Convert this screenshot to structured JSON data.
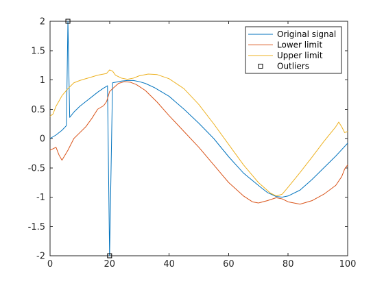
{
  "chart_data": {
    "type": "line",
    "xlim": [
      0,
      100
    ],
    "ylim": [
      -2,
      2
    ],
    "x_ticks": [
      0,
      20,
      40,
      60,
      80,
      100
    ],
    "y_ticks": [
      -2,
      -1.5,
      -1,
      -0.5,
      0,
      0.5,
      1,
      1.5,
      2
    ],
    "x_tick_labels": [
      "0",
      "20",
      "40",
      "60",
      "80",
      "100"
    ],
    "y_tick_labels": [
      "-2",
      "-1.5",
      "-1",
      "-0.5",
      "0",
      "0.5",
      "1",
      "1.5",
      "2"
    ],
    "grid": false,
    "legend_position": "top-right",
    "series": [
      {
        "name": "Original signal",
        "color": "#0072BD",
        "points": [
          [
            0,
            0
          ],
          [
            2,
            0.06
          ],
          [
            4,
            0.14
          ],
          [
            5.5,
            0.22
          ],
          [
            6,
            2.0
          ],
          [
            6.6,
            0.36
          ],
          [
            8,
            0.45
          ],
          [
            10,
            0.55
          ],
          [
            12,
            0.63
          ],
          [
            14,
            0.71
          ],
          [
            16,
            0.79
          ],
          [
            18,
            0.86
          ],
          [
            19.3,
            0.9
          ],
          [
            20,
            -2.0
          ],
          [
            21,
            0.95
          ],
          [
            24,
            0.98
          ],
          [
            26,
            0.99
          ],
          [
            28,
            0.99
          ],
          [
            30,
            0.97
          ],
          [
            32,
            0.94
          ],
          [
            35,
            0.87
          ],
          [
            40,
            0.72
          ],
          [
            45,
            0.5
          ],
          [
            50,
            0.26
          ],
          [
            55,
            0.0
          ],
          [
            60,
            -0.31
          ],
          [
            65,
            -0.59
          ],
          [
            70,
            -0.8
          ],
          [
            73,
            -0.92
          ],
          [
            76,
            -0.99
          ],
          [
            78,
            -1.0
          ],
          [
            80,
            -0.98
          ],
          [
            84,
            -0.88
          ],
          [
            88,
            -0.7
          ],
          [
            92,
            -0.5
          ],
          [
            96,
            -0.3
          ],
          [
            100,
            -0.08
          ]
        ]
      },
      {
        "name": "Lower limit",
        "color": "#D95319",
        "points": [
          [
            0,
            -0.2
          ],
          [
            2,
            -0.15
          ],
          [
            3,
            -0.28
          ],
          [
            4,
            -0.37
          ],
          [
            6,
            -0.2
          ],
          [
            8,
            0.0
          ],
          [
            10,
            0.1
          ],
          [
            12,
            0.2
          ],
          [
            14,
            0.34
          ],
          [
            16,
            0.5
          ],
          [
            18,
            0.56
          ],
          [
            19,
            0.63
          ],
          [
            20,
            0.8
          ],
          [
            21,
            0.85
          ],
          [
            23,
            0.94
          ],
          [
            25,
            0.97
          ],
          [
            27,
            0.96
          ],
          [
            29,
            0.92
          ],
          [
            32,
            0.82
          ],
          [
            36,
            0.62
          ],
          [
            40,
            0.39
          ],
          [
            45,
            0.12
          ],
          [
            50,
            -0.15
          ],
          [
            55,
            -0.45
          ],
          [
            60,
            -0.75
          ],
          [
            65,
            -0.98
          ],
          [
            68,
            -1.08
          ],
          [
            70,
            -1.1
          ],
          [
            73,
            -1.06
          ],
          [
            76,
            -1.01
          ],
          [
            78,
            -1.03
          ],
          [
            80,
            -1.08
          ],
          [
            84,
            -1.12
          ],
          [
            88,
            -1.06
          ],
          [
            92,
            -0.95
          ],
          [
            96,
            -0.8
          ],
          [
            98,
            -0.65
          ],
          [
            99,
            -0.52
          ],
          [
            100,
            -0.45
          ]
        ]
      },
      {
        "name": "Upper limit",
        "color": "#EDB120",
        "points": [
          [
            0,
            0.38
          ],
          [
            1,
            0.42
          ],
          [
            2,
            0.55
          ],
          [
            4,
            0.73
          ],
          [
            6,
            0.85
          ],
          [
            8,
            0.95
          ],
          [
            10,
            0.99
          ],
          [
            12,
            1.02
          ],
          [
            14,
            1.05
          ],
          [
            16,
            1.08
          ],
          [
            18,
            1.1
          ],
          [
            19,
            1.11
          ],
          [
            20,
            1.17
          ],
          [
            21,
            1.15
          ],
          [
            22,
            1.08
          ],
          [
            24,
            1.03
          ],
          [
            26,
            1.01
          ],
          [
            28,
            1.03
          ],
          [
            30,
            1.07
          ],
          [
            33,
            1.1
          ],
          [
            36,
            1.09
          ],
          [
            40,
            1.02
          ],
          [
            45,
            0.85
          ],
          [
            50,
            0.58
          ],
          [
            55,
            0.25
          ],
          [
            60,
            -0.1
          ],
          [
            65,
            -0.45
          ],
          [
            70,
            -0.75
          ],
          [
            74,
            -0.93
          ],
          [
            76,
            -0.98
          ],
          [
            78,
            -0.95
          ],
          [
            80,
            -0.83
          ],
          [
            84,
            -0.58
          ],
          [
            88,
            -0.32
          ],
          [
            92,
            -0.05
          ],
          [
            96,
            0.2
          ],
          [
            97,
            0.28
          ],
          [
            98,
            0.2
          ],
          [
            99,
            0.1
          ],
          [
            100,
            0.12
          ]
        ]
      }
    ],
    "markers": {
      "name": "Outliers",
      "symbol": "square",
      "color": "#000000",
      "points": [
        [
          6,
          2
        ],
        [
          20,
          -2
        ]
      ]
    },
    "legend": [
      "Original signal",
      "Lower limit",
      "Upper limit",
      "Outliers"
    ]
  }
}
